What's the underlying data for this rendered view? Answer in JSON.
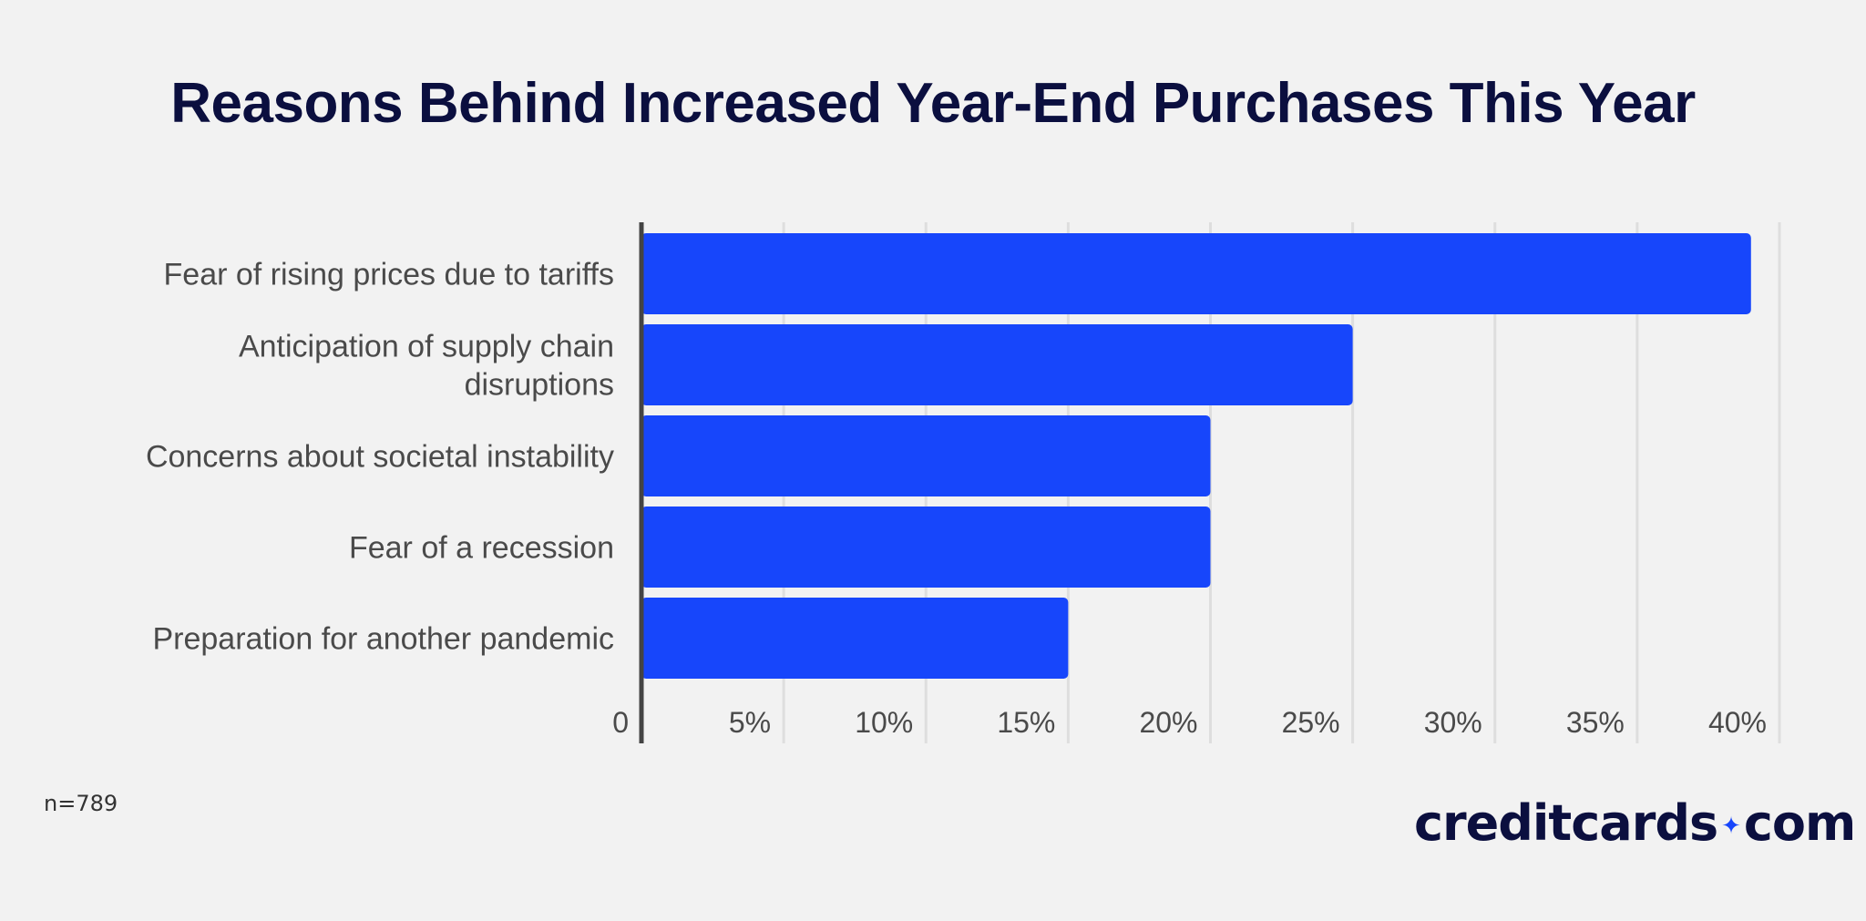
{
  "chart_data": {
    "type": "bar",
    "orientation": "horizontal",
    "title": "Reasons Behind Increased Year-End Purchases This Year",
    "categories": [
      [
        "Fear of rising prices due to tariffs"
      ],
      [
        "Anticipation of supply chain",
        "disruptions"
      ],
      [
        "Concerns about societal instability"
      ],
      [
        "Fear of a recession"
      ],
      [
        "Preparation for another pandemic"
      ]
    ],
    "values": [
      39,
      25,
      20,
      20,
      15
    ],
    "xlim": [
      0,
      40
    ],
    "xticks": [
      "0",
      "5%",
      "10%",
      "15%",
      "20%",
      "25%",
      "30%",
      "35%",
      "40%"
    ],
    "grid": true,
    "bar_color": "#1746fb"
  },
  "footnote": "n=789",
  "logo": {
    "left": "creditcards",
    "right": "com"
  }
}
